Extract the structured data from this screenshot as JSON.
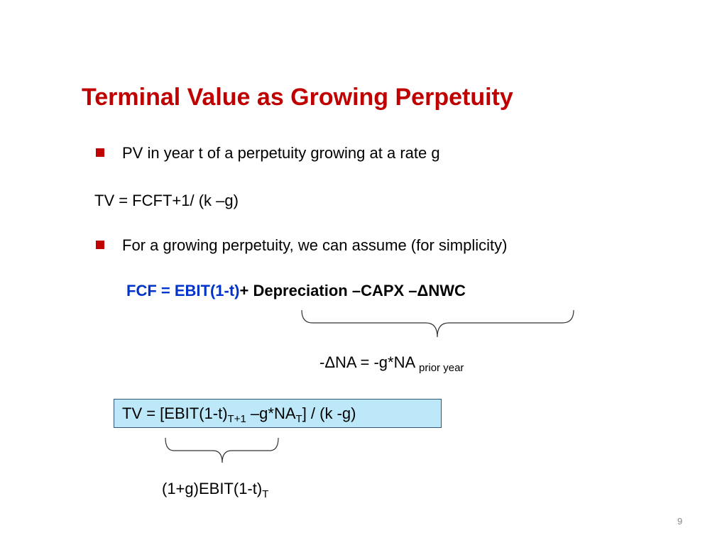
{
  "title": "Terminal Value as Growing Perpetuity",
  "bullets": [
    "PV in year t of a perpetuity growing at a rate g",
    "For a growing perpetuity, we can assume (for simplicity)"
  ],
  "tv_line": "TV = FCFT+1/ (k –g)",
  "fcf_formula": {
    "blue_part": "FCF = EBIT(1-t)",
    "rest": "+ Depreciation –CAPX –ΔNWC"
  },
  "brace_label": {
    "text": "-ΔNA = -g*NA",
    "subscript": "prior year"
  },
  "boxed_formula": {
    "part1": "TV = [EBIT(1-t)",
    "sub1": "T+1",
    "part2": " –g*NA",
    "sub2": "T",
    "part3": "] / (k -g)"
  },
  "bottom_label": {
    "text": "(1+g)EBIT(1-t)",
    "subscript": "T"
  },
  "page_number": "9"
}
